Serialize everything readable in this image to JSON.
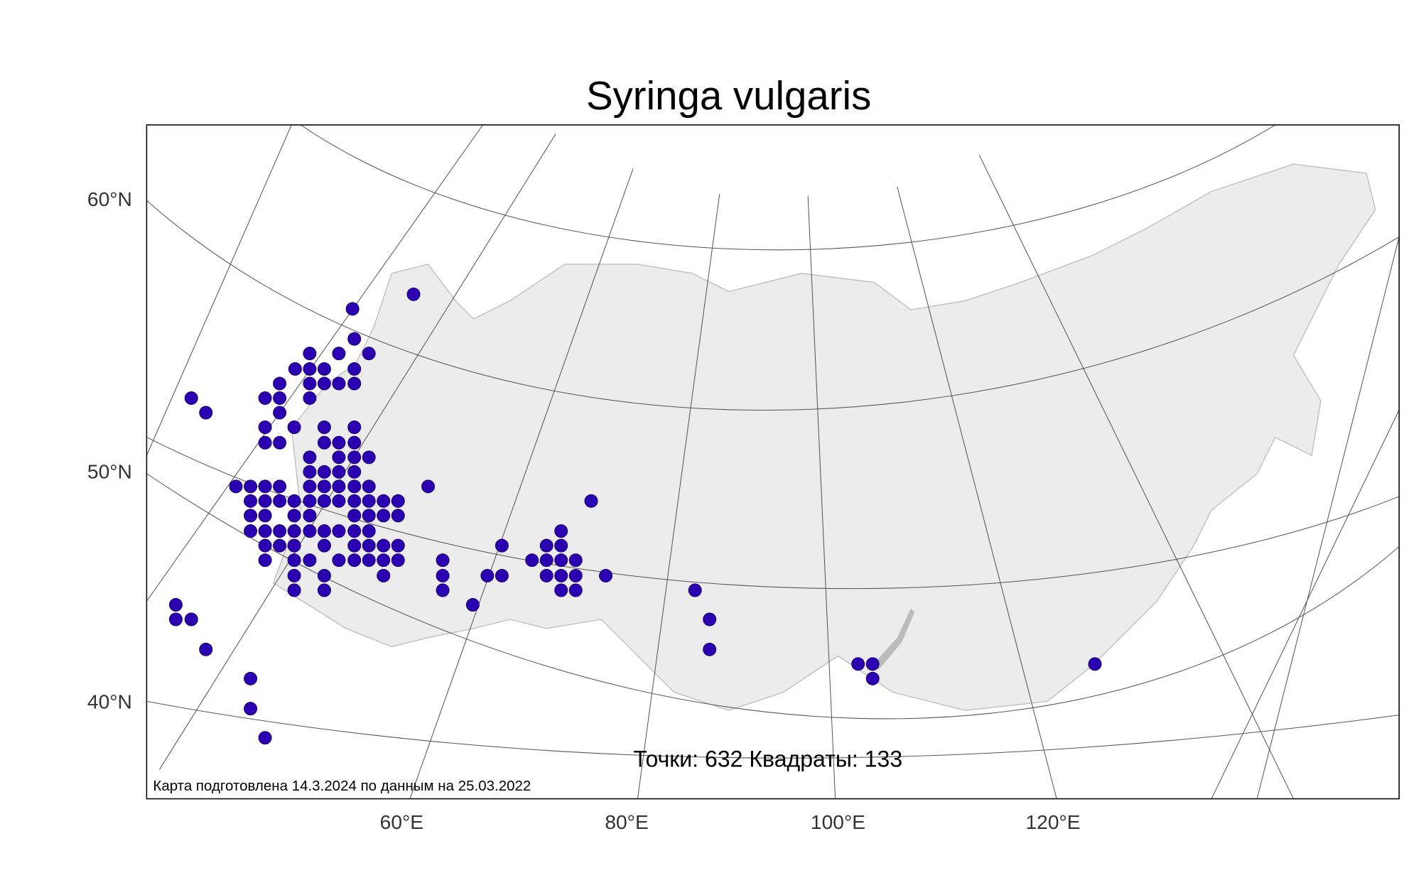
{
  "title": "Syringa vulgaris",
  "lat_labels": [
    "60°N",
    "50°N",
    "40°N"
  ],
  "lon_labels": [
    "60°E",
    "80°E",
    "100°E",
    "120°E"
  ],
  "stats": "Точки: 632 Квадраты: 133",
  "note": "Карта подготовлена 14.3.2024 по данным на 25.03.2022"
}
